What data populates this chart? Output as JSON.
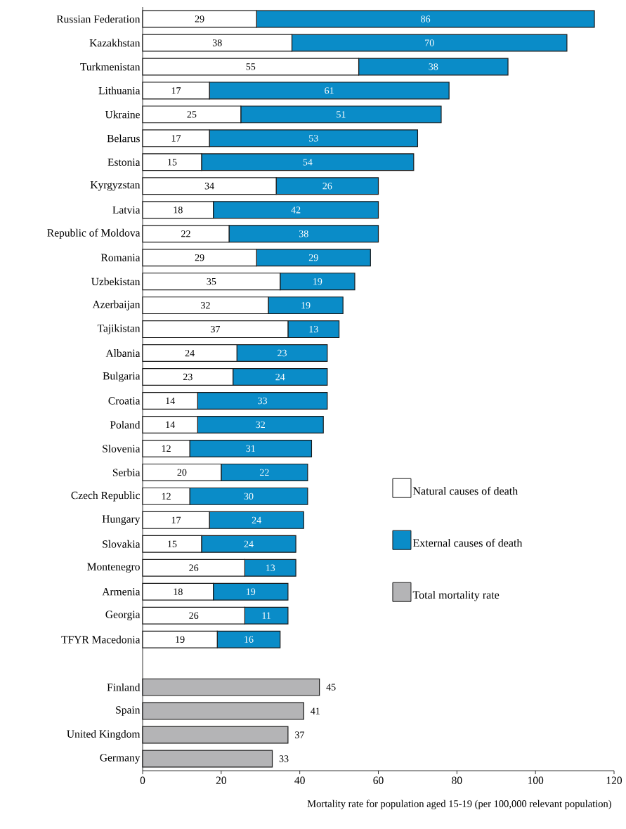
{
  "chart_data": {
    "type": "bar",
    "orientation": "horizontal",
    "stacked": true,
    "data_labels": true,
    "legend": "right",
    "xlabel": "Mortality rate for population aged 15-19 (per 100,000 relevant population)",
    "categories": [
      "Russian Federation",
      "Kazakhstan",
      "Turkmenistan",
      "Lithuania",
      "Ukraine",
      "Belarus",
      "Estonia",
      "Kyrgyzstan",
      "Latvia",
      "Republic of Moldova",
      "Romania",
      "Uzbekistan",
      "Azerbaijan",
      "Tajikistan",
      "Albania",
      "Bulgaria",
      "Croatia",
      "Poland",
      "Slovenia",
      "Serbia",
      "Czech Republic",
      "Hungary",
      "Slovakia",
      "Montenegro",
      "Armenia",
      "Georgia",
      "TFYR Macedonia",
      null,
      "Finland",
      "Spain",
      "United Kingdom",
      "Germany"
    ],
    "xlim": [
      0,
      120
    ],
    "xticks": [
      0,
      20,
      40,
      60,
      80,
      100,
      120
    ],
    "series": [
      {
        "name": "Natural causes of death",
        "color": "#ffffff",
        "values": [
          29,
          38,
          55,
          17,
          25,
          17,
          15,
          34,
          18,
          22,
          29,
          35,
          32,
          37,
          24,
          23,
          14,
          14,
          12,
          20,
          12,
          17,
          15,
          26,
          18,
          26,
          19,
          null,
          null,
          null,
          null,
          null
        ]
      },
      {
        "name": "External causes of death",
        "color": "#0a8cc8",
        "values": [
          86,
          70,
          38,
          61,
          51,
          53,
          54,
          26,
          42,
          38,
          29,
          19,
          19,
          13,
          23,
          24,
          33,
          32,
          31,
          22,
          30,
          24,
          24,
          13,
          19,
          11,
          16,
          null,
          null,
          null,
          null,
          null
        ]
      },
      {
        "name": "Total mortality rate",
        "color": "#b4b4b6",
        "values": [
          null,
          null,
          null,
          null,
          null,
          null,
          null,
          null,
          null,
          null,
          null,
          null,
          null,
          null,
          null,
          null,
          null,
          null,
          null,
          null,
          null,
          null,
          null,
          null,
          null,
          null,
          null,
          null,
          45,
          41,
          37,
          33
        ]
      }
    ]
  }
}
